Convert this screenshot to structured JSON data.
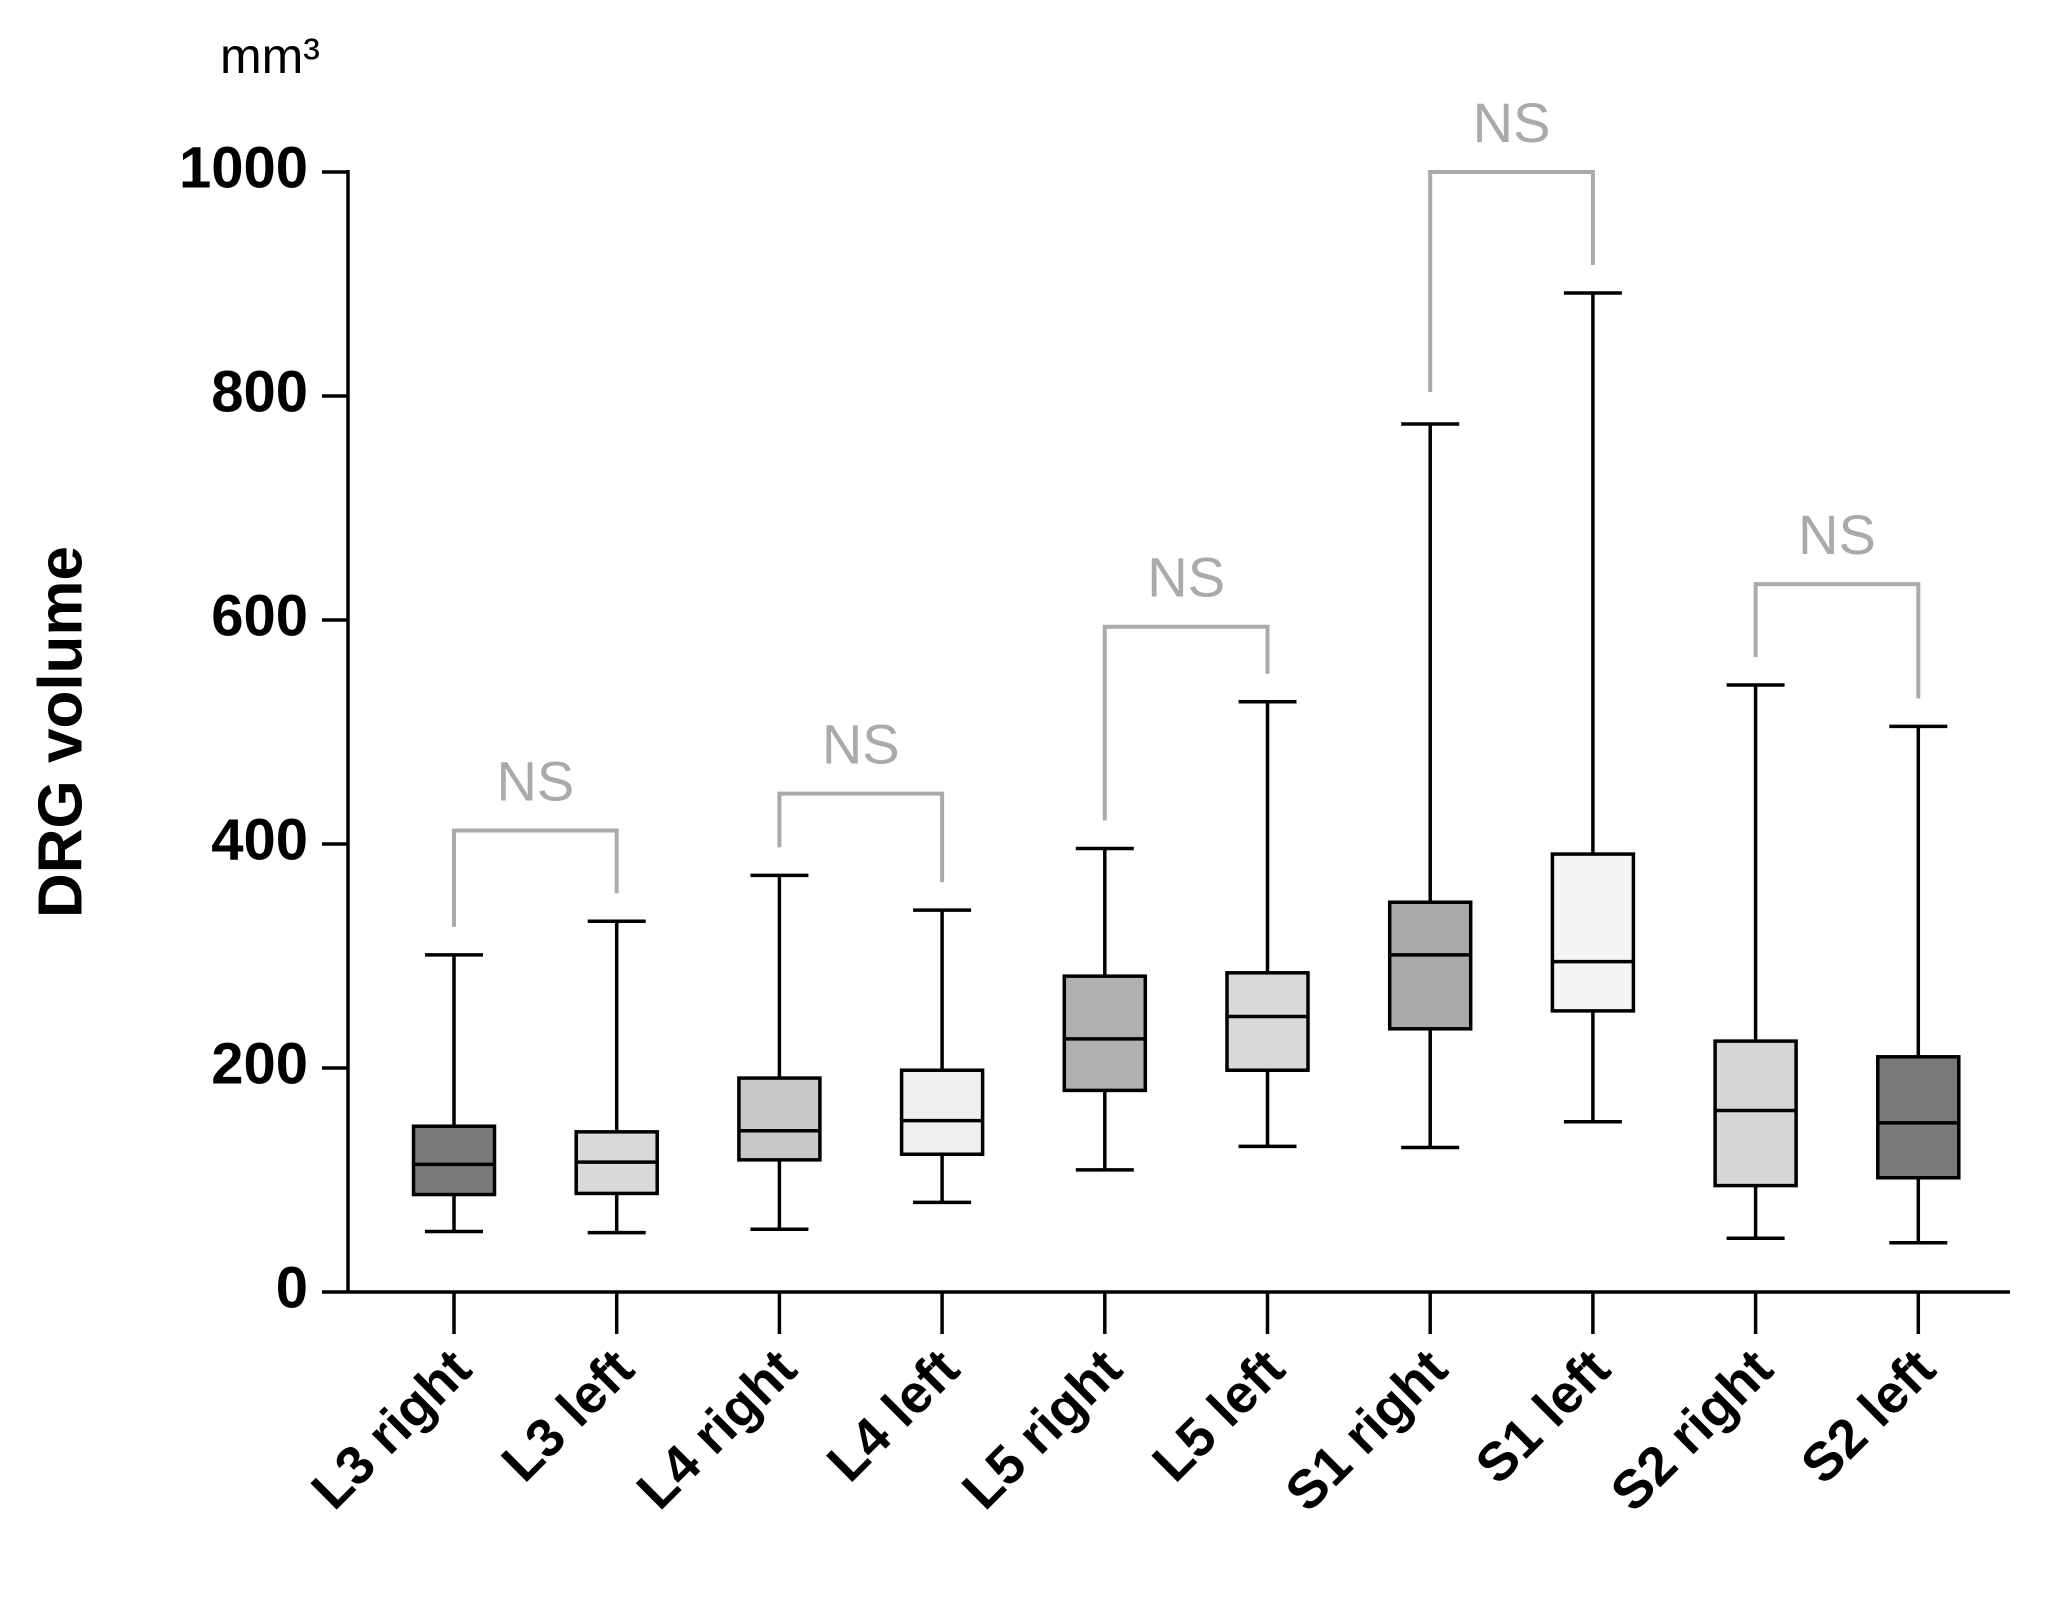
{
  "chart_data": {
    "type": "box",
    "y_label": "DRG volume",
    "unit": "mm³",
    "categories": [
      "L3 right",
      "L3 left",
      "L4 right",
      "L4 left",
      "L5 right",
      "L5 left",
      "S1 right",
      "S1 left",
      "S2 right",
      "S2 left"
    ],
    "min": [
      54,
      53,
      56,
      80,
      109,
      130,
      129,
      152,
      48,
      44
    ],
    "q1": [
      87,
      88,
      118,
      123,
      180,
      198,
      235,
      251,
      95,
      102
    ],
    "median": [
      114,
      116,
      144,
      153,
      226,
      246,
      301,
      295,
      162,
      151
    ],
    "q3": [
      148,
      143,
      191,
      198,
      282,
      285,
      348,
      391,
      224,
      210
    ],
    "max": [
      301,
      331,
      372,
      341,
      396,
      527,
      775,
      892,
      542,
      505
    ],
    "colors": [
      "#7a7a7a",
      "#d9d9d9",
      "#c8c8c8",
      "#efefef",
      "#b0b0b0",
      "#d9d9d9",
      "#aaaaaa",
      "#f5f5f5",
      "#d6d6d6",
      "#7a7a7a"
    ],
    "ylim": [
      0,
      1000
    ],
    "yticks": [
      0,
      200,
      400,
      600,
      800,
      1000
    ],
    "comparisons": [
      {
        "label": "NS",
        "pair": [
          0,
          1
        ],
        "y": 412
      },
      {
        "label": "NS",
        "pair": [
          2,
          3
        ],
        "y": 445
      },
      {
        "label": "NS",
        "pair": [
          4,
          5
        ],
        "y": 594
      },
      {
        "label": "NS",
        "pair": [
          6,
          7
        ],
        "y": 1000
      },
      {
        "label": "NS",
        "pair": [
          8,
          9
        ],
        "y": 632
      }
    ]
  }
}
